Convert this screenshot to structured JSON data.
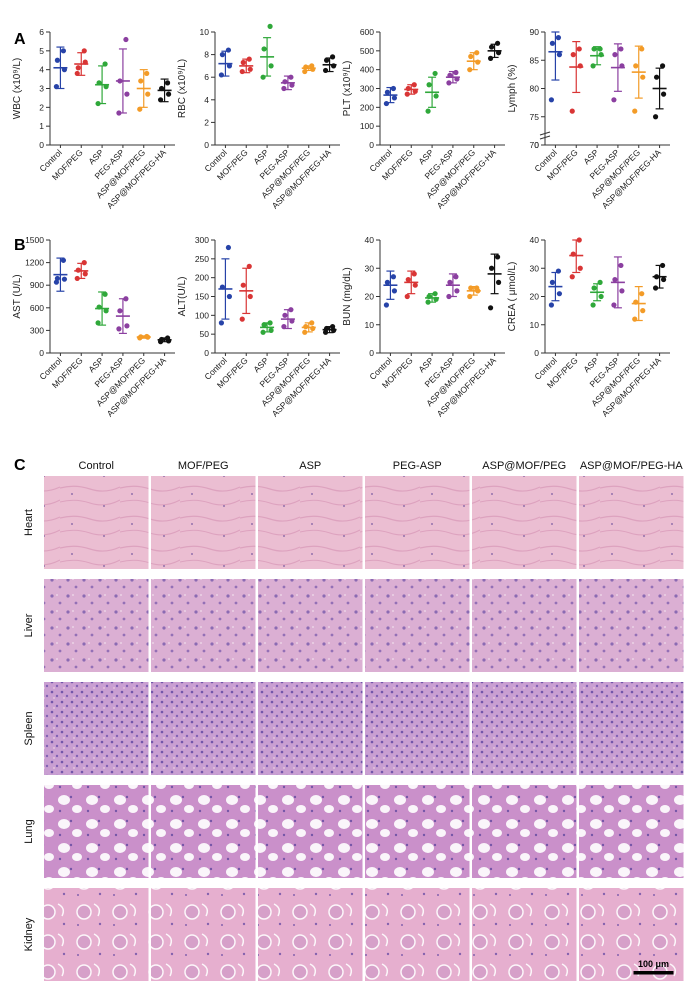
{
  "panels": {
    "a": "A",
    "b": "B",
    "c": "C"
  },
  "groups": [
    "Control",
    "MOF/PEG",
    "ASP",
    "PEG-ASP",
    "ASP@MOF/PEG",
    "ASP@MOF/PEG-HA"
  ],
  "colors": [
    "#2743a8",
    "#d93535",
    "#2fa83a",
    "#8b3fa0",
    "#f39b27",
    "#111111"
  ],
  "chart_data": [
    {
      "type": "scatter",
      "ylabel": "WBC (x10⁹/L)",
      "ylim": [
        0,
        6
      ],
      "yticks": [
        0,
        1,
        2,
        3,
        4,
        5,
        6
      ],
      "points": [
        [
          3.1,
          4.0,
          4.5,
          5.0
        ],
        [
          3.8,
          4.4,
          4.1,
          5.0
        ],
        [
          2.2,
          3.1,
          3.3,
          4.3
        ],
        [
          1.7,
          2.7,
          3.4,
          5.6
        ],
        [
          1.9,
          2.7,
          3.4,
          3.8
        ],
        [
          2.4,
          2.7,
          3.0,
          3.3
        ]
      ],
      "mean": [
        4.1,
        4.3,
        3.2,
        3.4,
        3.0,
        2.9
      ],
      "sd": [
        1.1,
        0.6,
        1.0,
        1.7,
        1.0,
        0.6
      ]
    },
    {
      "type": "scatter",
      "ylabel": "RBC (x10⁹/L)",
      "ylim": [
        0,
        10
      ],
      "yticks": [
        0,
        2,
        4,
        6,
        8,
        10
      ],
      "points": [
        [
          6.2,
          7.0,
          8.0,
          8.4
        ],
        [
          6.5,
          6.7,
          7.3,
          7.6
        ],
        [
          6.0,
          7.0,
          8.5,
          10.5
        ],
        [
          5.0,
          5.3,
          5.6,
          6.0
        ],
        [
          6.5,
          6.7,
          6.9,
          7.0
        ],
        [
          6.6,
          7.0,
          7.5,
          7.8
        ]
      ],
      "mean": [
        7.2,
        7.0,
        7.8,
        5.5,
        6.8,
        7.1
      ],
      "sd": [
        1.1,
        0.6,
        1.7,
        0.6,
        0.2,
        0.6
      ]
    },
    {
      "type": "scatter",
      "ylabel": "PLT (x10⁹/L)",
      "ylim": [
        0,
        600
      ],
      "yticks": [
        0,
        100,
        200,
        300,
        400,
        500,
        600
      ],
      "points": [
        [
          220,
          250,
          280,
          300
        ],
        [
          270,
          285,
          300,
          320
        ],
        [
          180,
          260,
          320,
          380
        ],
        [
          330,
          350,
          370,
          385
        ],
        [
          400,
          440,
          470,
          490
        ],
        [
          460,
          490,
          520,
          540
        ]
      ],
      "mean": [
        265,
        295,
        280,
        360,
        445,
        500
      ],
      "sd": [
        40,
        25,
        80,
        30,
        45,
        35
      ]
    },
    {
      "type": "scatter",
      "ylabel": "Lymph (%)",
      "ylim": [
        70,
        90
      ],
      "yticks": [
        0,
        70,
        75,
        80,
        85,
        90
      ],
      "axis_break": true,
      "points": [
        [
          78,
          86,
          88,
          89
        ],
        [
          76,
          84,
          86,
          87
        ],
        [
          84,
          86,
          87,
          87
        ],
        [
          78,
          84,
          86,
          87
        ],
        [
          76,
          82,
          84,
          87
        ],
        [
          75,
          79,
          82,
          84
        ]
      ],
      "mean": [
        86.5,
        83.8,
        85.8,
        83.7,
        82.9,
        80.0
      ],
      "sd": [
        5.0,
        4.5,
        1.6,
        4.2,
        4.6,
        3.6
      ]
    },
    {
      "type": "scatter",
      "ylabel": "AST (U/L)",
      "ylim": [
        0,
        1500
      ],
      "yticks": [
        0,
        300,
        600,
        900,
        1200,
        1500
      ],
      "points": [
        [
          940,
          980,
          990,
          1230
        ],
        [
          990,
          1050,
          1100,
          1200
        ],
        [
          400,
          560,
          610,
          780
        ],
        [
          320,
          360,
          560,
          720
        ],
        [
          200,
          210,
          215,
          220
        ],
        [
          150,
          160,
          180,
          200
        ]
      ],
      "mean": [
        1040,
        1090,
        590,
        490,
        212,
        175
      ],
      "sd": [
        220,
        100,
        220,
        230,
        15,
        25
      ]
    },
    {
      "type": "scatter",
      "ylabel": "ALT(U/L)",
      "ylim": [
        0,
        300
      ],
      "yticks": [
        0,
        50,
        100,
        150,
        200,
        250,
        300
      ],
      "points": [
        [
          80,
          150,
          175,
          280
        ],
        [
          90,
          150,
          180,
          230
        ],
        [
          55,
          60,
          75,
          80
        ],
        [
          70,
          85,
          100,
          115
        ],
        [
          55,
          65,
          70,
          80
        ],
        [
          55,
          60,
          65,
          70
        ]
      ],
      "mean": [
        170,
        165,
        68,
        90,
        68,
        62
      ],
      "sd": [
        80,
        60,
        12,
        25,
        12,
        8
      ]
    },
    {
      "type": "scatter",
      "ylabel": "BUN (mg/dL)",
      "ylim": [
        0,
        40
      ],
      "yticks": [
        0,
        10,
        20,
        30,
        40
      ],
      "points": [
        [
          17,
          22,
          25,
          27
        ],
        [
          20,
          24,
          26,
          28
        ],
        [
          18,
          19,
          20,
          21
        ],
        [
          20,
          22,
          25,
          27
        ],
        [
          20,
          22,
          23,
          23
        ],
        [
          16,
          25,
          30,
          34
        ]
      ],
      "mean": [
        24,
        25,
        19.5,
        24,
        22,
        28
      ],
      "sd": [
        5,
        4,
        1.5,
        4,
        1.5,
        7
      ]
    },
    {
      "type": "scatter",
      "ylabel": "CREA ( μmol/L)",
      "ylim": [
        0,
        40
      ],
      "yticks": [
        0,
        10,
        20,
        30,
        40
      ],
      "points": [
        [
          17,
          21,
          25,
          29
        ],
        [
          27,
          30,
          35,
          40
        ],
        [
          17,
          20,
          23,
          25
        ],
        [
          17,
          22,
          26,
          31
        ],
        [
          12,
          15,
          18,
          21
        ],
        [
          23,
          26,
          27,
          31
        ]
      ],
      "mean": [
        23.5,
        34.5,
        21.5,
        25,
        17.5,
        27
      ],
      "sd": [
        5,
        6,
        3,
        9,
        6,
        4
      ]
    }
  ],
  "histology": {
    "columns": [
      "Control",
      "MOF/PEG",
      "ASP",
      "PEG-ASP",
      "ASP@MOF/PEG",
      "ASP@MOF/PEG-HA"
    ],
    "rows": [
      "Heart",
      "Liver",
      "Spleen",
      "Lung",
      "Kidney"
    ],
    "scale_bar": "100 μm",
    "tissue_colors": {
      "Heart": "#eab8cd",
      "Liver": "#d6a6cf",
      "Spleen": "#c59ad0",
      "Lung": "#cf97cf",
      "Kidney": "#e3abcd"
    }
  }
}
